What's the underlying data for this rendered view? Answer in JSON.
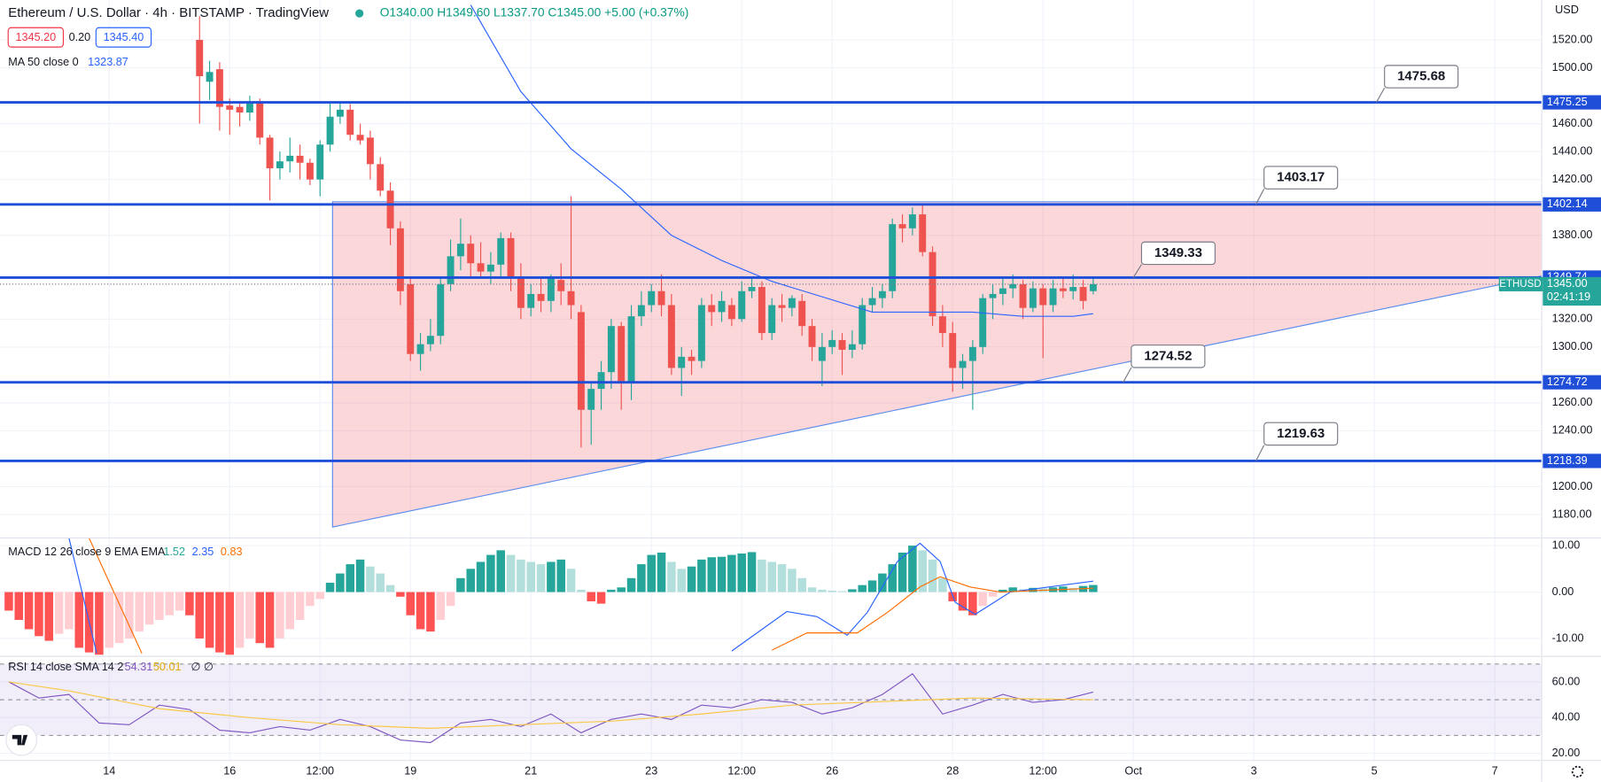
{
  "chart_data": [
    {
      "type": "candlestick",
      "title": "Ethereum / U.S. Dollar · 4h · BITSTAMP · TradingView",
      "ohlc_legend": "O1340.00 H1349.60 L1337.70 C1345.00 +5.00 (+0.37%)",
      "quote": {
        "bid": "1345.20",
        "spread": "0.20",
        "ask": "1345.40"
      },
      "y_unit": "USD",
      "up_color": "#26a69a",
      "down_color": "#ef5350",
      "grid": true,
      "xlim": [
        -43.5,
        570.7
      ],
      "xticks": [
        {
          "value": 0,
          "label": "14"
        },
        {
          "value": 48,
          "label": "16"
        },
        {
          "value": 84,
          "label": "12:00"
        },
        {
          "value": 120,
          "label": "19"
        },
        {
          "value": 168,
          "label": "21"
        },
        {
          "value": 216,
          "label": "23"
        },
        {
          "value": 252,
          "label": "12:00"
        },
        {
          "value": 288,
          "label": "26"
        },
        {
          "value": 336,
          "label": "28"
        },
        {
          "value": 372,
          "label": "12:00"
        },
        {
          "value": 408,
          "label": "Oct"
        },
        {
          "value": 456,
          "label": "3"
        },
        {
          "value": 504,
          "label": "5"
        },
        {
          "value": 552,
          "label": "7"
        }
      ],
      "ylim": [
        1163.2,
        1548.5
      ],
      "yticks": [
        {
          "value": 1180,
          "label": "1180.00"
        },
        {
          "value": 1200,
          "label": "1200.00"
        },
        {
          "value": 1240,
          "label": "1240.00"
        },
        {
          "value": 1260,
          "label": "1260.00"
        },
        {
          "value": 1300,
          "label": "1300.00"
        },
        {
          "value": 1320,
          "label": "1320.00"
        },
        {
          "value": 1380,
          "label": "1380.00"
        },
        {
          "value": 1420,
          "label": "1420.00"
        },
        {
          "value": 1440,
          "label": "1440.00"
        },
        {
          "value": 1460,
          "label": "1460.00"
        },
        {
          "value": 1500,
          "label": "1500.00"
        },
        {
          "value": 1520,
          "label": "1520.00"
        }
      ],
      "x": [
        36,
        40,
        44,
        48,
        52,
        56,
        60,
        64,
        68,
        72,
        76,
        80,
        84,
        88,
        92,
        96,
        100,
        104,
        108,
        112,
        116,
        120,
        124,
        128,
        132,
        136,
        140,
        144,
        148,
        152,
        156,
        160,
        164,
        168,
        172,
        176,
        180,
        184,
        188,
        192,
        196,
        200,
        204,
        208,
        212,
        216,
        220,
        224,
        228,
        232,
        236,
        240,
        244,
        248,
        252,
        256,
        260,
        264,
        268,
        272,
        276,
        280,
        284,
        288,
        292,
        296,
        300,
        304,
        308,
        312,
        316,
        320,
        324,
        328,
        332,
        336,
        340,
        344,
        348,
        352,
        356,
        360,
        364,
        368,
        372,
        376,
        380,
        384,
        388,
        392
      ],
      "open": [
        1520,
        1490,
        1499,
        1473,
        1472,
        1468,
        1476,
        1450,
        1428,
        1433,
        1437,
        1432,
        1420,
        1445,
        1465,
        1470,
        1452,
        1450,
        1431,
        1412,
        1385,
        1345,
        1295,
        1302,
        1308,
        1345,
        1365,
        1374,
        1360,
        1354,
        1359,
        1378,
        1350,
        1328,
        1338,
        1333,
        1348,
        1340,
        1325,
        1255,
        1270,
        1282,
        1315,
        1275,
        1322,
        1330,
        1340,
        1330,
        1285,
        1293,
        1290,
        1330,
        1325,
        1330,
        1320,
        1340,
        1343,
        1310,
        1330,
        1328,
        1333,
        1315,
        1290,
        1300,
        1305,
        1298,
        1302,
        1330,
        1335,
        1340,
        1388,
        1385,
        1395,
        1368,
        1322,
        1310,
        1285,
        1290,
        1300,
        1335,
        1338,
        1342,
        1345,
        1328,
        1342,
        1330,
        1342,
        1340,
        1343,
        1340
      ],
      "high": [
        1537,
        1505,
        1504,
        1478,
        1476,
        1480,
        1478,
        1452,
        1440,
        1450,
        1445,
        1435,
        1448,
        1475,
        1476,
        1474,
        1460,
        1455,
        1436,
        1418,
        1390,
        1350,
        1310,
        1320,
        1350,
        1377,
        1392,
        1380,
        1375,
        1368,
        1382,
        1382,
        1360,
        1345,
        1350,
        1352,
        1360,
        1408,
        1330,
        1275,
        1290,
        1320,
        1318,
        1330,
        1340,
        1345,
        1352,
        1338,
        1300,
        1298,
        1335,
        1338,
        1340,
        1335,
        1347,
        1350,
        1347,
        1335,
        1338,
        1337,
        1338,
        1320,
        1310,
        1312,
        1310,
        1312,
        1335,
        1343,
        1345,
        1392,
        1395,
        1400,
        1402,
        1372,
        1330,
        1318,
        1295,
        1305,
        1338,
        1345,
        1350,
        1352,
        1348,
        1347,
        1345,
        1348,
        1350,
        1352,
        1348,
        1349.6
      ],
      "low": [
        1460,
        1477,
        1455,
        1452,
        1458,
        1462,
        1445,
        1405,
        1420,
        1425,
        1420,
        1416,
        1408,
        1440,
        1460,
        1448,
        1445,
        1420,
        1408,
        1373,
        1330,
        1290,
        1283,
        1297,
        1302,
        1340,
        1355,
        1350,
        1350,
        1345,
        1350,
        1340,
        1320,
        1322,
        1325,
        1325,
        1330,
        1320,
        1228,
        1230,
        1255,
        1270,
        1255,
        1262,
        1315,
        1325,
        1322,
        1280,
        1265,
        1280,
        1285,
        1315,
        1318,
        1315,
        1318,
        1335,
        1305,
        1305,
        1318,
        1322,
        1308,
        1290,
        1272,
        1295,
        1280,
        1292,
        1298,
        1325,
        1328,
        1335,
        1375,
        1380,
        1365,
        1315,
        1300,
        1268,
        1270,
        1255,
        1295,
        1320,
        1330,
        1335,
        1320,
        1325,
        1292,
        1325,
        1335,
        1334,
        1327,
        1337.7
      ],
      "close": [
        1494,
        1497,
        1472,
        1470,
        1468,
        1475,
        1450,
        1428,
        1433,
        1437,
        1432,
        1420,
        1445,
        1465,
        1470,
        1452,
        1448,
        1431,
        1412,
        1385,
        1340,
        1295,
        1302,
        1308,
        1345,
        1365,
        1374,
        1360,
        1354,
        1359,
        1378,
        1350,
        1328,
        1338,
        1333,
        1350,
        1340,
        1330,
        1255,
        1270,
        1282,
        1315,
        1275,
        1322,
        1330,
        1340,
        1330,
        1285,
        1293,
        1290,
        1330,
        1325,
        1333,
        1320,
        1340,
        1343,
        1310,
        1330,
        1328,
        1335,
        1315,
        1300,
        1300,
        1305,
        1298,
        1302,
        1330,
        1335,
        1340,
        1388,
        1385,
        1395,
        1368,
        1322,
        1310,
        1285,
        1290,
        1300,
        1335,
        1338,
        1342,
        1345,
        1328,
        1342,
        1330,
        1342,
        1340,
        1343,
        1333,
        1345
      ],
      "series": [
        {
          "name": "MA 50 close 0",
          "color": "#2962ff",
          "x": [
            144,
            164,
            184,
            204,
            224,
            244,
            264,
            284,
            304,
            324,
            344,
            364,
            384,
            392
          ],
          "values": [
            1545,
            1483,
            1442,
            1413,
            1380,
            1362,
            1347,
            1336,
            1325,
            1325,
            1325,
            1322,
            1322,
            1323.87
          ]
        }
      ],
      "zone": {
        "x": [
          89,
          571,
          571,
          89
        ],
        "y": [
          1404,
          1404,
          1351,
          1171
        ],
        "color": "#f23645",
        "edge": "#5b8def"
      },
      "level_color": "#1f4fd8",
      "levels": [
        {
          "value": 1475.25,
          "callout": 1475.68
        },
        {
          "value": 1402.14,
          "callout": 1403.17
        },
        {
          "value": 1349.74,
          "callout": 1349.33
        },
        {
          "value": 1274.72,
          "callout": 1274.52
        },
        {
          "value": 1218.39,
          "callout": 1219.63
        }
      ],
      "last_price": {
        "value": 1345,
        "label": "1345.00",
        "name": "ETHUSD",
        "countdown": "02:41:19",
        "color": "#26a69a"
      }
    },
    {
      "type": "macd",
      "title": "MACD 12 26 close 9 EMA EMA",
      "ylim": [
        -13.85,
        11.65
      ],
      "yticks": [
        {
          "value": 10,
          "label": "10.00"
        },
        {
          "value": 0,
          "label": "0.00"
        },
        {
          "value": -10,
          "label": "-10.00"
        }
      ],
      "histogram_colors": [
        "#26a69a",
        "#b2dfdb",
        "#ff5252",
        "#ffcdd2"
      ],
      "x": [
        -40,
        -36,
        -32,
        -28,
        -24,
        -20,
        -16,
        -12,
        -8,
        -4,
        0,
        4,
        8,
        12,
        16,
        20,
        24,
        28,
        32,
        36,
        40,
        44,
        48,
        52,
        56,
        60,
        64,
        68,
        72,
        76,
        80,
        84,
        88,
        92,
        96,
        100,
        104,
        108,
        112,
        116,
        120,
        124,
        128,
        132,
        136,
        140,
        144,
        148,
        152,
        156,
        160,
        164,
        168,
        172,
        176,
        180,
        184,
        188,
        192,
        196,
        200,
        204,
        208,
        212,
        216,
        220,
        224,
        228,
        232,
        236,
        240,
        244,
        248,
        252,
        256,
        260,
        264,
        268,
        272,
        276,
        280,
        284,
        288,
        292,
        296,
        300,
        304,
        308,
        312,
        316,
        320,
        324,
        328,
        332,
        336,
        340,
        344,
        348,
        352,
        356,
        360,
        364,
        368,
        372,
        376,
        380,
        384,
        388,
        392
      ],
      "histogram": [
        -4,
        -6,
        -8,
        -9.5,
        -10.5,
        -9,
        -8,
        -12,
        -13,
        -13.5,
        -12,
        -11,
        -10,
        -8.5,
        -7,
        -6,
        -5,
        -4,
        -5,
        -10,
        -12,
        -13,
        -13.5,
        -12,
        -10,
        -11,
        -12,
        -10,
        -8,
        -6,
        -3,
        -1.5,
        2,
        4,
        6,
        7,
        5.5,
        4,
        1.5,
        -1,
        -5,
        -8,
        -8.5,
        -6,
        -3,
        3,
        5,
        6.5,
        8,
        9,
        8,
        7,
        6.5,
        6,
        6.5,
        7,
        5,
        0.5,
        -2,
        -2.5,
        0.5,
        1,
        3,
        6,
        8,
        8.5,
        6.5,
        5,
        5.5,
        7,
        7.5,
        7.6,
        8,
        8.3,
        8.6,
        7,
        6.5,
        6,
        5,
        3,
        1,
        0.5,
        0.3,
        0.2,
        0.6,
        1.5,
        2.5,
        4,
        6,
        8.5,
        10,
        9,
        7,
        3,
        -2,
        -4,
        -5,
        -3,
        -1,
        0.5,
        1,
        0.6,
        0.9,
        0.8,
        1,
        1.2,
        0.9,
        1.3,
        1.52
      ],
      "series": [
        {
          "color": "#2962ff",
          "x": [
            -16,
            -5,
            120,
            248,
            270,
            282,
            294,
            302,
            314,
            323,
            331,
            337,
            345,
            359,
            392
          ],
          "values": [
            11.6,
            -13.2,
            null,
            -12.7,
            -4.2,
            -5.3,
            -9.3,
            -4.4,
            6.6,
            10.5,
            6.6,
            -2.2,
            -4.8,
            0,
            2.35
          ]
        },
        {
          "color": "#ff6d00",
          "x": [
            -8,
            13,
            120,
            264,
            278,
            298,
            310,
            323,
            331,
            343,
            355,
            392
          ],
          "values": [
            11.6,
            -13.2,
            null,
            -12.5,
            -8.8,
            -8.8,
            -4.4,
            1.1,
            3.3,
            1.1,
            0,
            0.83
          ]
        }
      ]
    },
    {
      "type": "line",
      "title": "RSI 14 close SMA 14 2",
      "extra": "∅ ∅",
      "ylim": [
        16,
        74.3
      ],
      "yticks": [
        {
          "value": 60,
          "label": "60.00"
        },
        {
          "value": 40,
          "label": "40.00"
        },
        {
          "value": 20,
          "label": "20.00"
        }
      ],
      "bands": [
        70,
        50,
        30
      ],
      "band_fill": "#7e57c2",
      "series": [
        {
          "color": "#7e57c2",
          "x": [
            -40,
            -28,
            -16,
            -4,
            8,
            20,
            32,
            44,
            56,
            68,
            80,
            92,
            104,
            116,
            128,
            140,
            152,
            164,
            176,
            188,
            200,
            212,
            224,
            236,
            248,
            260,
            272,
            284,
            296,
            308,
            320,
            332,
            344,
            356,
            368,
            380,
            392
          ],
          "values": [
            60,
            51,
            53,
            37,
            36,
            47,
            44.5,
            33,
            31.5,
            35,
            33,
            39,
            35,
            27.5,
            26,
            37,
            39,
            35,
            42,
            31.5,
            39,
            42,
            39,
            47,
            45.5,
            50,
            48.5,
            42,
            45.5,
            53,
            64.5,
            42,
            47,
            53,
            48.5,
            50,
            54.31
          ]
        },
        {
          "color": "#f9c846",
          "x": [
            -40,
            -16,
            20,
            56,
            92,
            128,
            164,
            200,
            236,
            272,
            308,
            344,
            392
          ],
          "values": [
            60,
            55,
            45,
            40,
            36,
            34,
            36,
            38,
            42,
            47,
            49,
            51,
            50.01
          ]
        }
      ]
    }
  ]
}
